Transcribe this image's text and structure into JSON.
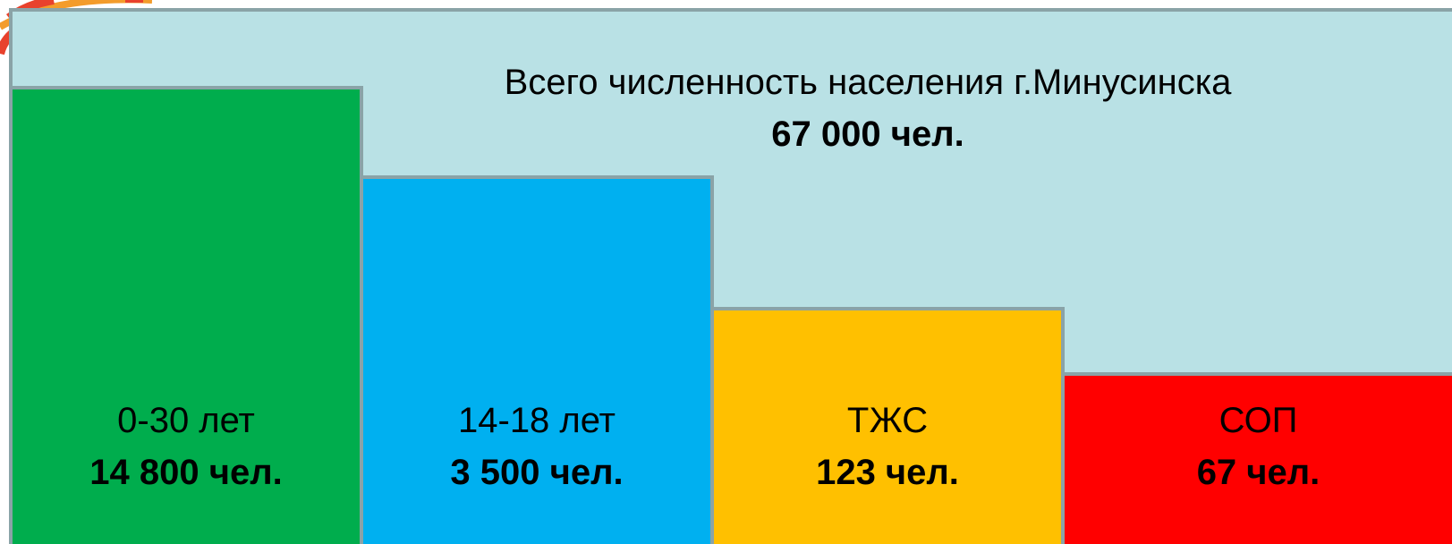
{
  "header": {
    "title": "Всего численность населения г.Минусинска",
    "total": "67 000 чел."
  },
  "groups": [
    {
      "label": "0-30 лет",
      "value": "14 800 чел.",
      "color": "#00ad4d"
    },
    {
      "label": "14-18 лет",
      "value": "3 500 чел.",
      "color": "#00b0f0"
    },
    {
      "label": "ТЖС",
      "value": "123 чел.",
      "color": "#ffc000"
    },
    {
      "label": "СОП",
      "value": "67 чел.",
      "color": "#ff0000"
    }
  ]
}
